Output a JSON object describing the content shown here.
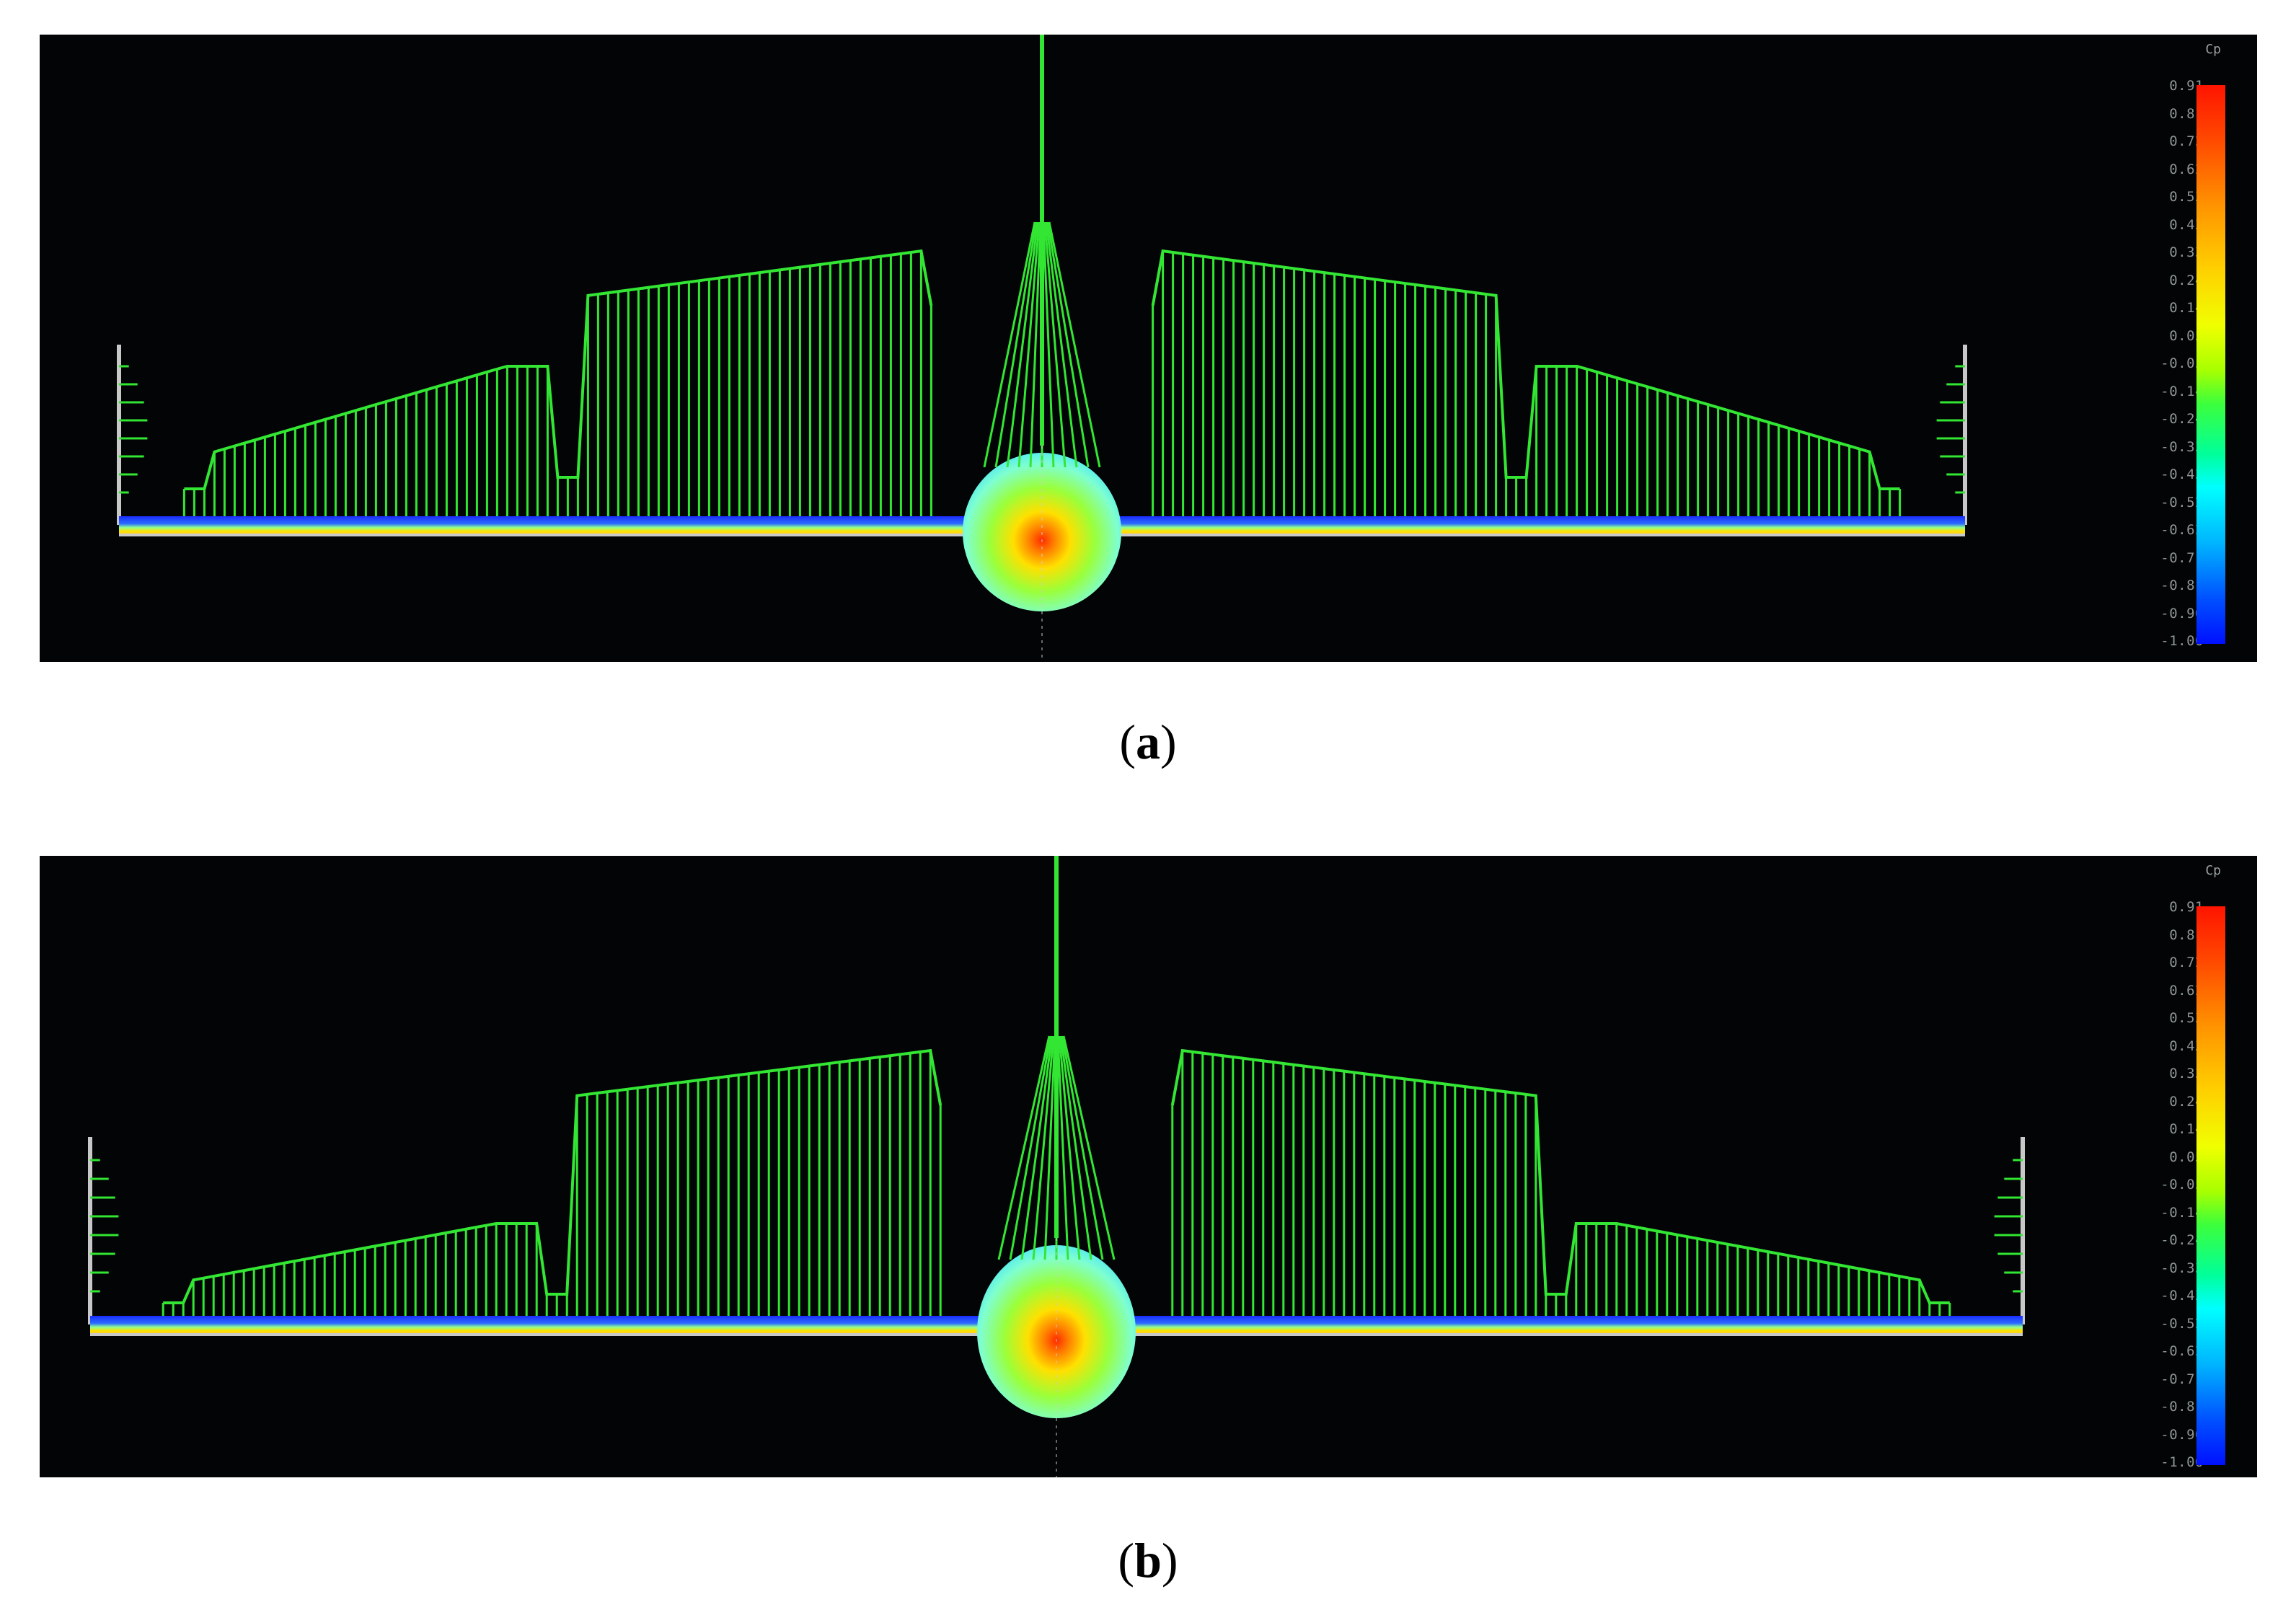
{
  "legend": {
    "title": "Cp",
    "ticks": [
      "0.91",
      "0.81",
      "0.72",
      "0.62",
      "0.53",
      "0.43",
      "0.33",
      "0.24",
      "0.14",
      "0.05",
      "-0.05",
      "-0.14",
      "-0.24",
      "-0.33",
      "-0.43",
      "-0.52",
      "-0.62",
      "-0.71",
      "-0.81",
      "-0.90",
      "-1.00"
    ]
  },
  "panels": [
    {
      "caption_letter": "a"
    },
    {
      "caption_letter": "b"
    }
  ],
  "colors": {
    "background": "#020406",
    "lift_lines": "#33e633",
    "surface_negative": "#1a3cff",
    "surface_positive": "#ffe000",
    "stagnation": "#ff2a00"
  }
}
